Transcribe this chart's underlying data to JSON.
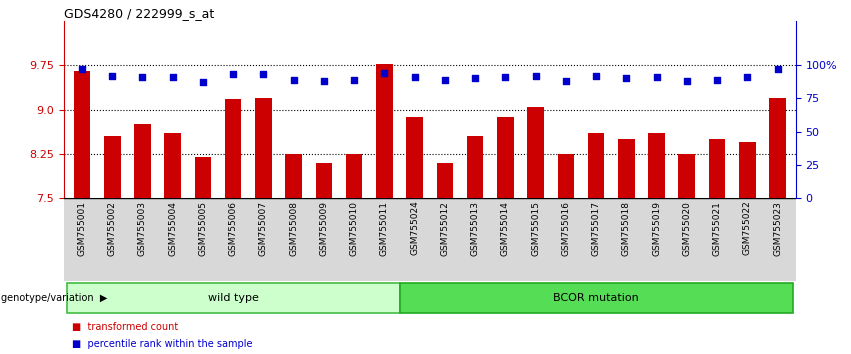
{
  "title": "GDS4280 / 222999_s_at",
  "categories": [
    "GSM755001",
    "GSM755002",
    "GSM755003",
    "GSM755004",
    "GSM755005",
    "GSM755006",
    "GSM755007",
    "GSM755008",
    "GSM755009",
    "GSM755010",
    "GSM755011",
    "GSM755024",
    "GSM755012",
    "GSM755013",
    "GSM755014",
    "GSM755015",
    "GSM755016",
    "GSM755017",
    "GSM755018",
    "GSM755019",
    "GSM755020",
    "GSM755021",
    "GSM755022",
    "GSM755023"
  ],
  "bar_values": [
    9.65,
    8.55,
    8.75,
    8.6,
    8.2,
    9.18,
    9.2,
    8.25,
    8.1,
    8.25,
    9.78,
    8.88,
    8.1,
    8.55,
    8.88,
    9.05,
    8.25,
    8.6,
    8.5,
    8.6,
    8.25,
    8.5,
    8.45,
    9.2
  ],
  "percentile_values": [
    97,
    92,
    91,
    91,
    87,
    93,
    93,
    89,
    88,
    89,
    94,
    91,
    89,
    90,
    91,
    92,
    88,
    92,
    90,
    91,
    88,
    89,
    91,
    97
  ],
  "wild_type_count": 11,
  "bcor_count": 13,
  "bar_color": "#cc0000",
  "dot_color": "#0000cc",
  "wild_type_color": "#ccffcc",
  "bcor_color": "#55dd55",
  "wild_type_label": "wild type",
  "bcor_label": "BCOR mutation",
  "ylim": [
    7.5,
    10.5
  ],
  "yticks_left": [
    7.5,
    8.25,
    9.0,
    9.75
  ],
  "yticks_right": [
    0,
    25,
    50,
    75,
    100
  ],
  "percentile_ylim": [
    0,
    133
  ],
  "legend_transformed": "transformed count",
  "legend_percentile": "percentile rank within the sample",
  "genotype_label": "genotype/variation",
  "background_color": "#ffffff",
  "xlabel_area_color": "#d8d8d8"
}
